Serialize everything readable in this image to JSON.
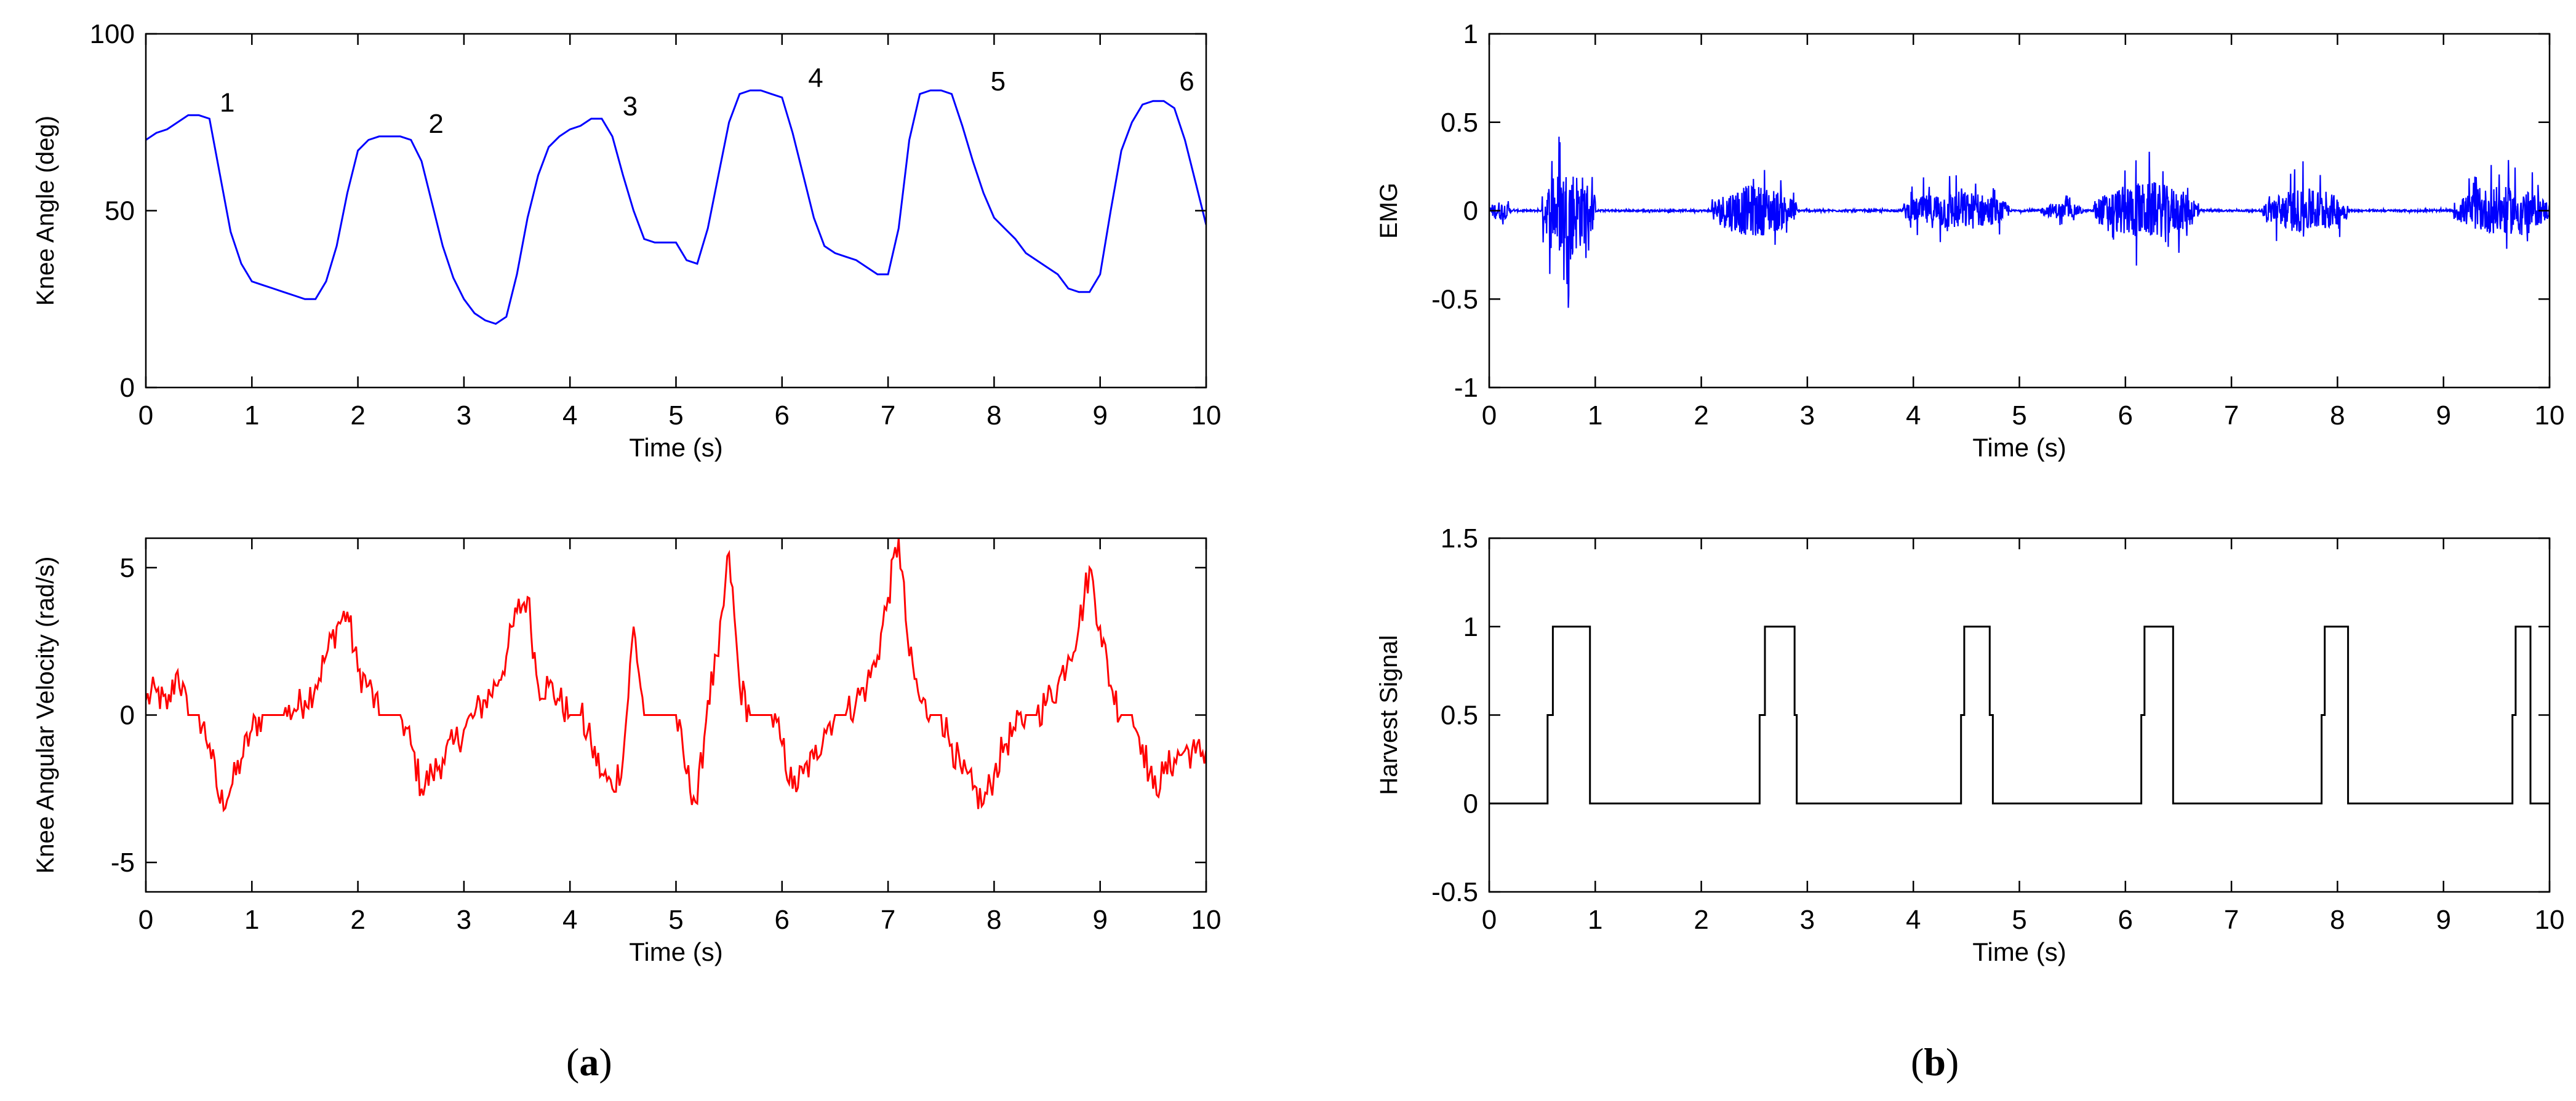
{
  "captions": [
    {
      "open": "(",
      "letter": "a",
      "close": ")"
    },
    {
      "open": "(",
      "letter": "b",
      "close": ")"
    }
  ],
  "chart_data": [
    {
      "type": "line",
      "panel": "a-top",
      "xlabel": "Time (s)",
      "ylabel": "Knee Angle (deg)",
      "xlim": [
        0,
        10
      ],
      "ylim": [
        0,
        100
      ],
      "xticks": [
        0,
        1,
        2,
        3,
        4,
        5,
        6,
        7,
        8,
        9,
        10
      ],
      "yticks": [
        0,
        50,
        100
      ],
      "grid": false,
      "color": "#0000ff",
      "x": [
        0,
        0.1,
        0.2,
        0.3,
        0.4,
        0.5,
        0.6,
        0.7,
        0.8,
        0.9,
        1.0,
        1.1,
        1.2,
        1.3,
        1.4,
        1.5,
        1.6,
        1.7,
        1.8,
        1.9,
        2.0,
        2.1,
        2.2,
        2.3,
        2.4,
        2.5,
        2.6,
        2.7,
        2.8,
        2.9,
        3.0,
        3.1,
        3.2,
        3.3,
        3.4,
        3.5,
        3.6,
        3.7,
        3.8,
        3.9,
        4.0,
        4.1,
        4.2,
        4.3,
        4.4,
        4.5,
        4.6,
        4.7,
        4.8,
        4.9,
        5.0,
        5.1,
        5.2,
        5.3,
        5.4,
        5.5,
        5.6,
        5.7,
        5.8,
        5.9,
        6.0,
        6.1,
        6.2,
        6.3,
        6.4,
        6.5,
        6.6,
        6.7,
        6.8,
        6.9,
        7.0,
        7.1,
        7.2,
        7.3,
        7.4,
        7.5,
        7.6,
        7.7,
        7.8,
        7.9,
        8.0,
        8.1,
        8.2,
        8.3,
        8.4,
        8.5,
        8.6,
        8.7,
        8.8,
        8.9,
        9.0,
        9.1,
        9.2,
        9.3,
        9.4,
        9.5,
        9.6,
        9.7,
        9.8,
        9.9,
        10.0
      ],
      "y": [
        70,
        72,
        73,
        75,
        77,
        77,
        76,
        60,
        44,
        35,
        30,
        29,
        28,
        27,
        26,
        25,
        25,
        30,
        40,
        55,
        67,
        70,
        71,
        71,
        71,
        70,
        64,
        52,
        40,
        31,
        25,
        21,
        19,
        18,
        20,
        32,
        48,
        60,
        68,
        71,
        73,
        74,
        76,
        76,
        71,
        60,
        50,
        42,
        41,
        41,
        41,
        36,
        35,
        45,
        60,
        75,
        83,
        84,
        84,
        83,
        82,
        72,
        60,
        48,
        40,
        38,
        37,
        36,
        34,
        32,
        32,
        45,
        70,
        83,
        84,
        84,
        83,
        74,
        64,
        55,
        48,
        45,
        42,
        38,
        36,
        34,
        32,
        28,
        27,
        27,
        32,
        50,
        67,
        75,
        80,
        81,
        81,
        79,
        70,
        58,
        46
      ],
      "annotations": [
        {
          "text": "1",
          "x": 0.65,
          "y": 78
        },
        {
          "text": "2",
          "x": 2.62,
          "y": 72
        },
        {
          "text": "3",
          "x": 4.45,
          "y": 77
        },
        {
          "text": "4",
          "x": 6.2,
          "y": 85
        },
        {
          "text": "5",
          "x": 7.92,
          "y": 84
        },
        {
          "text": "6",
          "x": 9.7,
          "y": 84
        }
      ]
    },
    {
      "type": "line",
      "panel": "a-bottom",
      "xlabel": "Time (s)",
      "ylabel": "Knee Angular Velocity (rad/s)",
      "xlim": [
        0,
        10
      ],
      "ylim": [
        -6,
        6
      ],
      "xticks": [
        0,
        1,
        2,
        3,
        4,
        5,
        6,
        7,
        8,
        9,
        10
      ],
      "yticks": [
        -5,
        0,
        5
      ],
      "grid": false,
      "color": "#ff0000",
      "x": [
        0,
        0.1,
        0.2,
        0.3,
        0.4,
        0.5,
        0.6,
        0.7,
        0.8,
        0.9,
        1.0,
        1.1,
        1.2,
        1.3,
        1.4,
        1.5,
        1.6,
        1.7,
        1.8,
        1.9,
        2.0,
        2.1,
        2.2,
        2.3,
        2.4,
        2.5,
        2.6,
        2.7,
        2.8,
        2.9,
        3.0,
        3.1,
        3.2,
        3.3,
        3.4,
        3.5,
        3.6,
        3.7,
        3.8,
        3.9,
        4.0,
        4.1,
        4.2,
        4.3,
        4.4,
        4.5,
        4.6,
        4.7,
        4.8,
        4.9,
        5.0,
        5.1,
        5.2,
        5.3,
        5.4,
        5.5,
        5.6,
        5.7,
        5.8,
        5.9,
        6.0,
        6.1,
        6.2,
        6.3,
        6.4,
        6.5,
        6.6,
        6.7,
        6.8,
        6.9,
        7.0,
        7.1,
        7.2,
        7.3,
        7.4,
        7.5,
        7.6,
        7.7,
        7.8,
        7.9,
        8.0,
        8.1,
        8.2,
        8.3,
        8.4,
        8.5,
        8.6,
        8.7,
        8.8,
        8.9,
        9.0,
        9.1,
        9.2,
        9.3,
        9.4,
        9.5,
        9.6,
        9.7,
        9.8,
        9.9,
        10.0
      ],
      "y": [
        0.5,
        0.8,
        0.2,
        1.5,
        0,
        0,
        -1,
        -3,
        -2.5,
        -1.5,
        -0.5,
        0,
        0,
        0,
        0.2,
        0.5,
        1,
        2,
        3,
        3.5,
        1.5,
        1,
        0,
        0,
        0,
        -1,
        -2.5,
        -2,
        -1.5,
        -1,
        -0.5,
        0,
        0.5,
        1,
        2,
        3.5,
        4,
        1,
        1,
        0.5,
        0,
        0,
        -1,
        -2,
        -2.5,
        -1.5,
        3,
        0,
        0,
        0,
        0,
        -2,
        -3,
        0.5,
        2,
        5.5,
        1,
        0,
        0,
        0,
        -1,
        -2.5,
        -2,
        -1.5,
        -0.5,
        0,
        0,
        0.5,
        1,
        2,
        4,
        6,
        2,
        0.5,
        0,
        0,
        -1,
        -2,
        -2.5,
        -3,
        -2,
        -1,
        -0.5,
        0,
        0,
        0.5,
        1,
        2,
        3,
        5,
        3,
        1,
        0,
        0,
        -1,
        -2.5,
        -2,
        -1.5,
        -1.2,
        -1.3,
        -1.2
      ]
    },
    {
      "type": "line",
      "panel": "b-top",
      "xlabel": "Time (s)",
      "ylabel": "EMG",
      "xlim": [
        0,
        10
      ],
      "ylim": [
        -1,
        1
      ],
      "xticks": [
        0,
        1,
        2,
        3,
        4,
        5,
        6,
        7,
        8,
        9,
        10
      ],
      "yticks": [
        -1,
        -0.5,
        0,
        0.5,
        1
      ],
      "grid": false,
      "color": "#0000ff",
      "bursts": [
        {
          "start": 0.0,
          "end": 0.2,
          "amp": 0.12
        },
        {
          "start": 0.5,
          "end": 1.0,
          "amp": 0.55
        },
        {
          "start": 2.1,
          "end": 2.9,
          "amp": 0.32
        },
        {
          "start": 3.9,
          "end": 4.9,
          "amp": 0.25
        },
        {
          "start": 5.2,
          "end": 5.6,
          "amp": 0.1
        },
        {
          "start": 5.7,
          "end": 6.7,
          "amp": 0.35
        },
        {
          "start": 7.3,
          "end": 8.1,
          "amp": 0.28
        },
        {
          "start": 9.1,
          "end": 10.0,
          "amp": 0.3
        }
      ]
    },
    {
      "type": "line",
      "panel": "b-bottom",
      "xlabel": "Time (s)",
      "ylabel": "Harvest Signal",
      "xlim": [
        0,
        10
      ],
      "ylim": [
        -0.5,
        1.5
      ],
      "xticks": [
        0,
        1,
        2,
        3,
        4,
        5,
        6,
        7,
        8,
        9,
        10
      ],
      "yticks": [
        -0.5,
        0,
        0.5,
        1,
        1.5
      ],
      "grid": false,
      "color": "#000000",
      "x": [
        0,
        0.55,
        0.55,
        0.6,
        0.6,
        0.95,
        0.95,
        2.55,
        2.55,
        2.6,
        2.6,
        2.88,
        2.88,
        2.9,
        2.9,
        4.45,
        4.45,
        4.48,
        4.48,
        4.72,
        4.72,
        4.75,
        4.75,
        6.15,
        6.15,
        6.18,
        6.18,
        6.45,
        6.45,
        7.85,
        7.85,
        7.88,
        7.88,
        8.1,
        8.1,
        9.65,
        9.65,
        9.68,
        9.68,
        9.82,
        9.82,
        10.0
      ],
      "y": [
        0,
        0,
        0.5,
        0.5,
        1,
        1,
        0,
        0,
        0.5,
        0.5,
        1,
        1,
        0.5,
        0.5,
        0,
        0,
        0.5,
        0.5,
        1,
        1,
        0.5,
        0.5,
        0,
        0,
        0.5,
        0.5,
        1,
        1,
        0,
        0,
        0.5,
        0.5,
        1,
        1,
        0,
        0,
        0.5,
        0.5,
        1,
        1,
        0,
        0
      ]
    }
  ]
}
